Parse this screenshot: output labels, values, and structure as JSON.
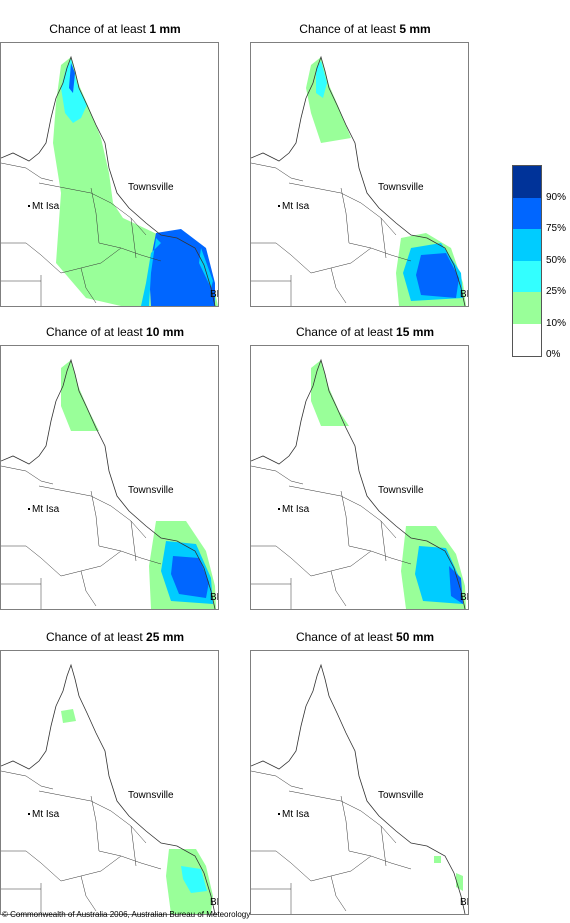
{
  "panels": [
    {
      "title_prefix": "Chance of at least ",
      "threshold": "1 mm"
    },
    {
      "title_prefix": "Chance of at least ",
      "threshold": "5 mm"
    },
    {
      "title_prefix": "Chance of at least ",
      "threshold": "10 mm"
    },
    {
      "title_prefix": "Chance of at least ",
      "threshold": "15 mm"
    },
    {
      "title_prefix": "Chance of at least ",
      "threshold": "25 mm"
    },
    {
      "title_prefix": "Chance of at least ",
      "threshold": "50 mm"
    }
  ],
  "places": {
    "townsville": "Townsville",
    "mount_isa": "Mt Isa",
    "brisbane": "BRIS"
  },
  "legend": {
    "ticks": [
      "90%",
      "75%",
      "50%",
      "25%",
      "10%",
      "0%"
    ],
    "colors": [
      "#003399",
      "#0066ff",
      "#00ccff",
      "#33ffff",
      "#99ff99",
      "#ffffff"
    ]
  },
  "copyright": "© Commonwealth of Australia 2006, Australian Bureau of Meteorology"
}
